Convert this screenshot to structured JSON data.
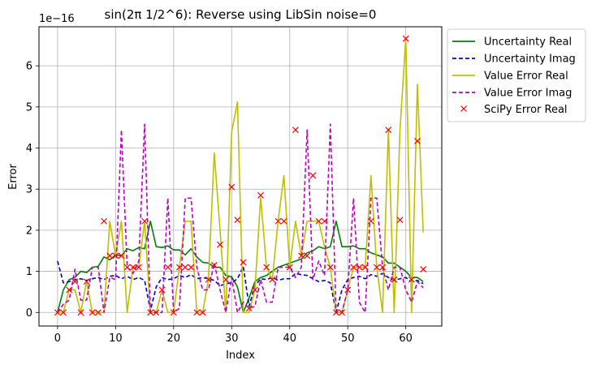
{
  "chart_data": {
    "type": "line",
    "title": "sin(2π 1/2^6): Reverse using LibSin noise=0",
    "xlabel": "Index",
    "ylabel": "Error",
    "y_scale_label": "1e−16",
    "xlim": [
      -3.2,
      66.2
    ],
    "ylim": [
      -0.33,
      6.95
    ],
    "xticks": [
      0,
      10,
      20,
      30,
      40,
      50,
      60
    ],
    "yticks": [
      0,
      1,
      2,
      3,
      4,
      5,
      6
    ],
    "grid": true,
    "legend_position": "outside-top-right",
    "x": [
      0,
      1,
      2,
      3,
      4,
      5,
      6,
      7,
      8,
      9,
      10,
      11,
      12,
      13,
      14,
      15,
      16,
      17,
      18,
      19,
      20,
      21,
      22,
      23,
      24,
      25,
      26,
      27,
      28,
      29,
      30,
      31,
      32,
      33,
      34,
      35,
      36,
      37,
      38,
      39,
      40,
      41,
      42,
      43,
      44,
      45,
      46,
      47,
      48,
      49,
      50,
      51,
      52,
      53,
      54,
      55,
      56,
      57,
      58,
      59,
      60,
      61,
      62,
      63
    ],
    "series": [
      {
        "name": "Uncertainty Real",
        "color": "#008000",
        "dash": "solid",
        "values": [
          0.0,
          0.55,
          0.8,
          0.85,
          1.0,
          0.97,
          1.1,
          1.12,
          1.35,
          1.28,
          1.4,
          1.38,
          1.55,
          1.5,
          1.58,
          1.55,
          2.22,
          1.6,
          1.58,
          1.62,
          1.52,
          1.52,
          1.4,
          1.55,
          1.35,
          1.22,
          1.2,
          1.1,
          1.1,
          0.9,
          0.87,
          0.62,
          0.0,
          0.35,
          0.75,
          0.85,
          0.9,
          1.0,
          1.1,
          1.15,
          1.2,
          1.25,
          1.3,
          1.45,
          1.5,
          1.6,
          1.55,
          1.6,
          2.22,
          1.6,
          1.6,
          1.62,
          1.55,
          1.55,
          1.45,
          1.4,
          1.35,
          1.2,
          1.2,
          1.1,
          1.0,
          0.85,
          0.85,
          0.75
        ]
      },
      {
        "name": "Uncertainty Imag",
        "color": "#0000cc",
        "dash": "dashed",
        "values": [
          1.25,
          0.72,
          0.75,
          0.8,
          0.82,
          0.78,
          0.82,
          0.85,
          0.8,
          0.88,
          0.9,
          0.82,
          0.88,
          0.8,
          0.85,
          0.78,
          0.05,
          0.62,
          0.85,
          0.8,
          0.82,
          0.9,
          0.85,
          0.92,
          0.82,
          0.85,
          0.82,
          0.78,
          0.65,
          0.7,
          0.72,
          0.82,
          1.12,
          0.15,
          0.65,
          0.82,
          0.8,
          0.85,
          0.78,
          0.82,
          0.82,
          0.95,
          0.92,
          0.9,
          0.82,
          0.75,
          0.78,
          0.72,
          0.0,
          0.55,
          0.8,
          0.85,
          0.88,
          0.82,
          0.92,
          0.88,
          0.95,
          0.85,
          0.78,
          0.82,
          0.85,
          0.75,
          0.78,
          0.7
        ]
      },
      {
        "name": "Value Error Real",
        "color": "#bfbf00",
        "dash": "solid",
        "values": [
          0.0,
          0.0,
          0.55,
          0.55,
          0.0,
          0.75,
          0.0,
          0.0,
          0.0,
          2.22,
          1.38,
          2.22,
          0.0,
          1.1,
          1.1,
          2.22,
          0.0,
          0.0,
          0.55,
          0.0,
          0.0,
          1.1,
          2.22,
          2.22,
          0.0,
          0.0,
          0.8,
          3.88,
          2.0,
          0.0,
          4.4,
          5.12,
          0.0,
          0.0,
          0.55,
          2.8,
          1.1,
          0.8,
          2.22,
          3.33,
          1.1,
          2.22,
          1.38,
          2.22,
          2.22,
          2.22,
          1.6,
          1.1,
          0.0,
          0.0,
          0.55,
          1.1,
          1.1,
          1.1,
          3.33,
          1.1,
          0.0,
          4.44,
          0.0,
          4.44,
          6.66,
          0.0,
          5.55,
          1.95
        ]
      },
      {
        "name": "Value Error Imag",
        "color": "#bf00bf",
        "dash": "dashed",
        "values": [
          0.0,
          0.2,
          0.3,
          1.05,
          0.3,
          0.3,
          1.1,
          1.1,
          0.0,
          0.85,
          0.8,
          4.44,
          1.1,
          0.95,
          1.25,
          4.58,
          0.0,
          0.0,
          0.0,
          2.78,
          0.0,
          0.1,
          2.78,
          2.78,
          1.1,
          0.55,
          0.55,
          1.2,
          0.55,
          0.0,
          0.85,
          0.0,
          0.25,
          0.1,
          0.15,
          0.8,
          0.25,
          0.25,
          1.1,
          1.1,
          1.1,
          0.85,
          1.1,
          4.44,
          0.8,
          1.25,
          0.9,
          4.58,
          0.0,
          0.0,
          0.55,
          2.78,
          0.25,
          0.0,
          2.78,
          2.78,
          1.1,
          0.55,
          1.1,
          1.1,
          0.55,
          0.25,
          0.75,
          0.6
        ]
      }
    ],
    "markers": {
      "name": "SciPy Error Real",
      "color": "#ff0000",
      "symbol": "x",
      "values": [
        0.0,
        0.0,
        0.55,
        0.75,
        0.0,
        0.75,
        0.0,
        0.0,
        2.22,
        1.38,
        1.38,
        1.38,
        1.1,
        1.1,
        1.1,
        2.22,
        0.0,
        0.0,
        0.55,
        1.1,
        0.0,
        1.1,
        1.1,
        1.1,
        0.0,
        0.0,
        0.8,
        1.15,
        1.65,
        0.8,
        3.05,
        2.25,
        1.22,
        0.1,
        0.55,
        2.85,
        1.1,
        0.8,
        2.22,
        2.22,
        1.1,
        4.44,
        1.38,
        1.38,
        3.33,
        2.22,
        2.22,
        1.1,
        0.0,
        0.0,
        0.55,
        1.1,
        1.1,
        1.1,
        2.22,
        1.1,
        1.1,
        4.44,
        0.8,
        2.25,
        6.66,
        0.8,
        4.17,
        1.05
      ]
    }
  }
}
